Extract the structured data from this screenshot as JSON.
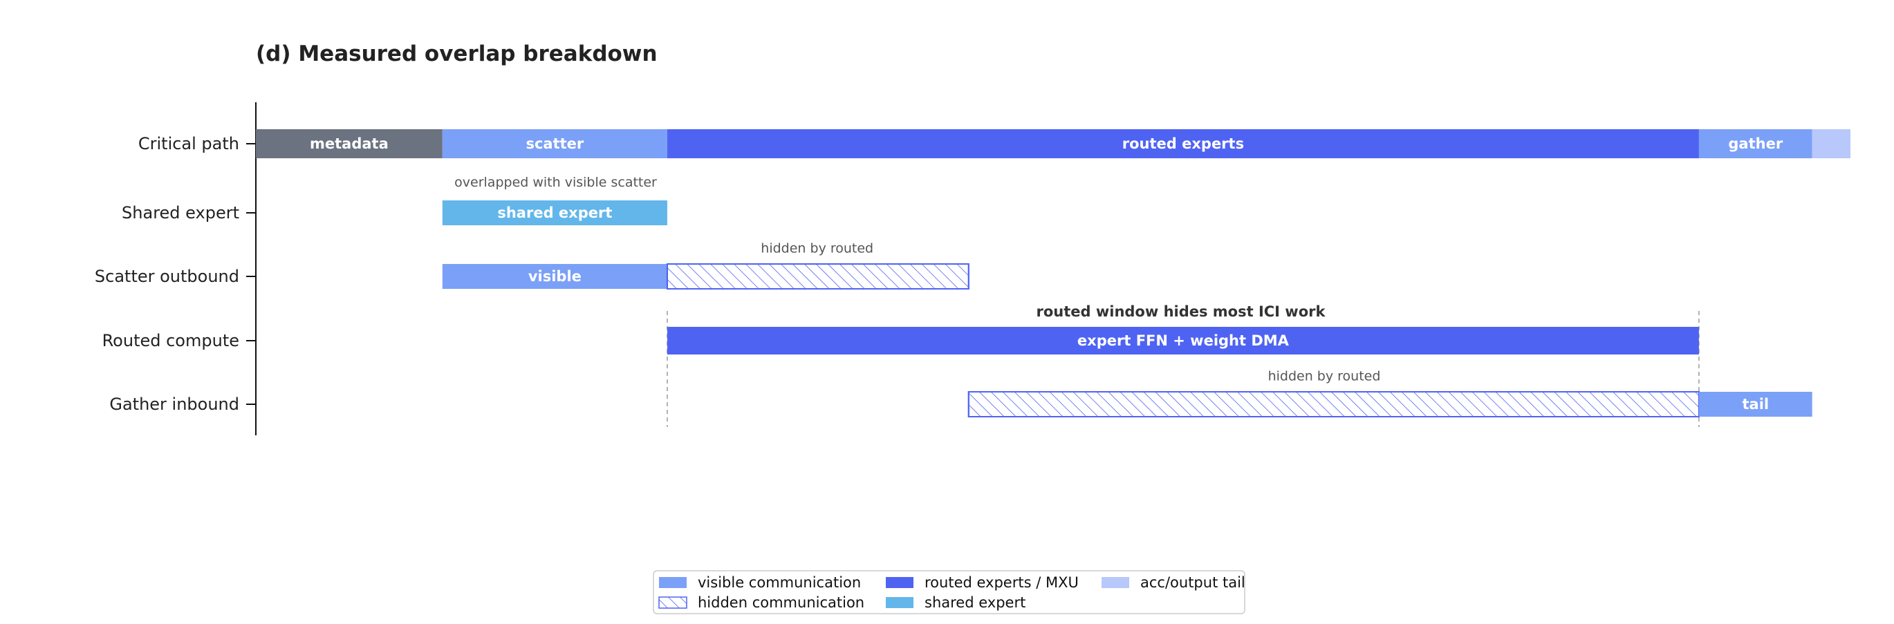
{
  "colors": {
    "metadata": "#6b7280",
    "visible": "#7ba0f7",
    "routed": "#4f63f2",
    "shared": "#62b6ea",
    "acc_tail": "#b8c8fb",
    "hidden_stroke": "#4f63f2",
    "text": "#222222"
  },
  "chart_data": {
    "type": "timeline",
    "title": "(d) Measured overlap breakdown",
    "x_range": [
      0,
      1.0
    ],
    "rows": [
      "Critical path",
      "Shared expert",
      "Scatter outbound",
      "Routed compute",
      "Gather inbound"
    ],
    "segments": [
      {
        "row": 0,
        "start": 0.0,
        "end": 0.117,
        "style": "metadata",
        "label": "metadata"
      },
      {
        "row": 0,
        "start": 0.117,
        "end": 0.258,
        "style": "visible",
        "label": "scatter"
      },
      {
        "row": 0,
        "start": 0.258,
        "end": 0.905,
        "style": "routed",
        "label": "routed experts"
      },
      {
        "row": 0,
        "start": 0.905,
        "end": 0.976,
        "style": "visible",
        "label": "gather"
      },
      {
        "row": 0,
        "start": 0.976,
        "end": 1.0,
        "style": "acc_tail",
        "label": ""
      },
      {
        "row": 1,
        "start": 0.117,
        "end": 0.258,
        "style": "shared",
        "label": "shared expert"
      },
      {
        "row": 2,
        "start": 0.117,
        "end": 0.258,
        "style": "visible",
        "label": "visible"
      },
      {
        "row": 2,
        "start": 0.258,
        "end": 0.447,
        "style": "hidden",
        "label": ""
      },
      {
        "row": 3,
        "start": 0.258,
        "end": 0.905,
        "style": "routed",
        "label": "expert FFN + weight DMA"
      },
      {
        "row": 4,
        "start": 0.447,
        "end": 0.905,
        "style": "hidden",
        "label": ""
      },
      {
        "row": 4,
        "start": 0.905,
        "end": 0.976,
        "style": "visible",
        "label": "tail"
      }
    ],
    "annotations": [
      {
        "text": "overlapped with visible scatter",
        "x": 0.188,
        "row": 0.55,
        "bold": false
      },
      {
        "text": "hidden by routed",
        "x": 0.352,
        "row": 1.55,
        "bold": false
      },
      {
        "text": "routed window hides most ICI work",
        "x": 0.58,
        "row": 2.55,
        "bold": true
      },
      {
        "text": "hidden by routed",
        "x": 0.67,
        "row": 3.55,
        "bold": false
      }
    ],
    "reference_lines": [
      0.258,
      0.905
    ],
    "legend": {
      "placement": "bottom-center",
      "entries": [
        {
          "label": "visible communication",
          "style": "visible"
        },
        {
          "label": "hidden communication",
          "style": "hidden"
        },
        {
          "label": "routed experts / MXU",
          "style": "routed"
        },
        {
          "label": "shared expert",
          "style": "shared"
        },
        {
          "label": "acc/output tail",
          "style": "acc_tail"
        }
      ]
    }
  }
}
